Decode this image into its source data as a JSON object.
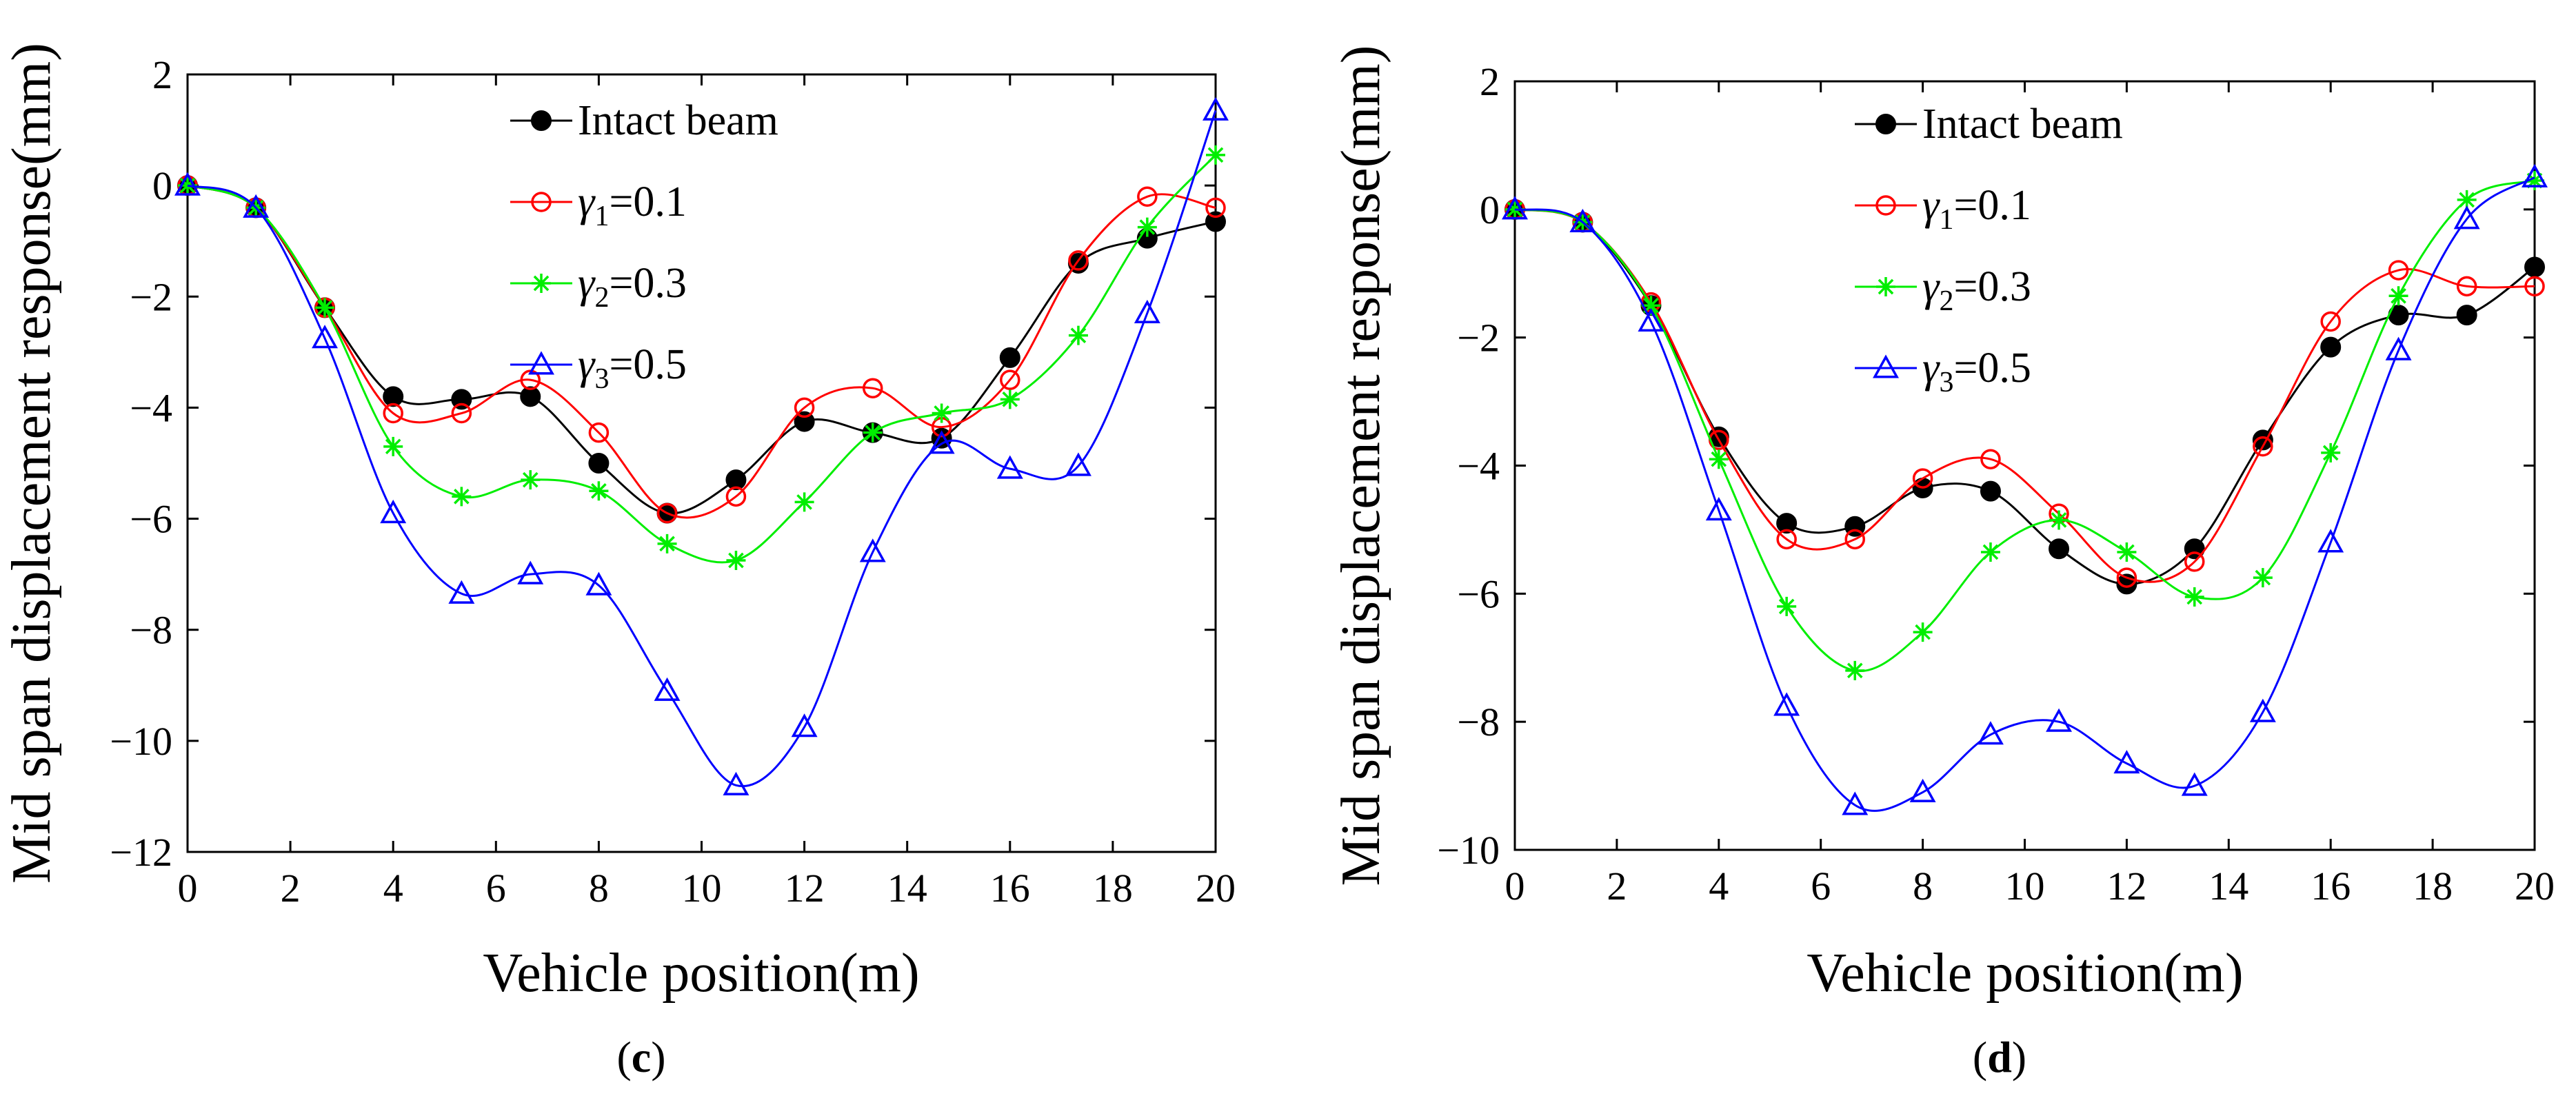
{
  "panels": [
    {
      "label_open": "(",
      "label_letter": "c",
      "label_close": ")"
    },
    {
      "label_open": "(",
      "label_letter": "d",
      "label_close": ")"
    }
  ],
  "legend": [
    {
      "prefix": "Intact beam",
      "sub": "",
      "suffix": "",
      "color": "#000000",
      "marker": "filled-circle"
    },
    {
      "prefix": "γ",
      "sub": "1",
      "suffix": "=0.1",
      "color": "#ff0000",
      "marker": "open-circle"
    },
    {
      "prefix": "γ",
      "sub": "2",
      "suffix": "=0.3",
      "color": "#00ee00",
      "marker": "asterisk"
    },
    {
      "prefix": "γ",
      "sub": "3",
      "suffix": "=0.5",
      "color": "#0000ff",
      "marker": "open-triangle"
    }
  ],
  "chart_data": [
    {
      "type": "line",
      "xlabel": "Vehicle position(m)",
      "ylabel": "Mid span displacement response(mm)",
      "xlim": [
        0,
        20
      ],
      "ylim": [
        -12,
        2
      ],
      "xticks": [
        0,
        2,
        4,
        6,
        8,
        10,
        12,
        14,
        16,
        18,
        20
      ],
      "yticks": [
        2,
        0,
        -2,
        -4,
        -6,
        -8,
        -10,
        -12
      ],
      "legend_position": "top-center",
      "grid": false,
      "x": [
        0,
        1.33,
        2.67,
        4.0,
        5.33,
        6.67,
        8.0,
        9.33,
        10.67,
        12.0,
        13.33,
        14.67,
        16.0,
        17.33,
        18.67,
        20.0
      ],
      "series": [
        {
          "name": "Intact beam",
          "values": [
            0,
            -0.4,
            -2.2,
            -3.8,
            -3.85,
            -3.8,
            -5.0,
            -5.9,
            -5.3,
            -4.25,
            -4.45,
            -4.55,
            -3.1,
            -1.4,
            -0.95,
            -0.65
          ]
        },
        {
          "name": "γ1=0.1",
          "values": [
            0,
            -0.4,
            -2.2,
            -4.1,
            -4.1,
            -3.5,
            -4.45,
            -5.9,
            -5.6,
            -4.0,
            -3.65,
            -4.35,
            -3.5,
            -1.35,
            -0.2,
            -0.4
          ]
        },
        {
          "name": "γ2=0.3",
          "values": [
            0,
            -0.4,
            -2.2,
            -4.7,
            -5.6,
            -5.3,
            -5.5,
            -6.45,
            -6.75,
            -5.7,
            -4.45,
            -4.1,
            -3.85,
            -2.7,
            -0.75,
            0.55
          ]
        },
        {
          "name": "γ3=0.5",
          "values": [
            0,
            -0.4,
            -2.75,
            -5.9,
            -7.35,
            -7.0,
            -7.2,
            -9.1,
            -10.8,
            -9.75,
            -6.6,
            -4.65,
            -5.1,
            -5.05,
            -2.3,
            1.35
          ]
        }
      ]
    },
    {
      "type": "line",
      "xlabel": "Vehicle position(m)",
      "ylabel": "Mid span displacement response(mm)",
      "xlim": [
        0,
        20
      ],
      "ylim": [
        -10,
        2
      ],
      "xticks": [
        0,
        2,
        4,
        6,
        8,
        10,
        12,
        14,
        16,
        18,
        20
      ],
      "yticks": [
        2,
        0,
        -2,
        -4,
        -6,
        -8,
        -10
      ],
      "legend_position": "top-center",
      "grid": false,
      "x": [
        0,
        1.33,
        2.67,
        4.0,
        5.33,
        6.67,
        8.0,
        9.33,
        10.67,
        12.0,
        13.33,
        14.67,
        16.0,
        17.33,
        18.67,
        20.0
      ],
      "series": [
        {
          "name": "Intact beam",
          "values": [
            0,
            -0.2,
            -1.5,
            -3.55,
            -4.9,
            -4.95,
            -4.35,
            -4.4,
            -5.3,
            -5.85,
            -5.3,
            -3.6,
            -2.15,
            -1.65,
            -1.65,
            -0.9
          ]
        },
        {
          "name": "γ1=0.1",
          "values": [
            0,
            -0.2,
            -1.45,
            -3.6,
            -5.15,
            -5.15,
            -4.2,
            -3.9,
            -4.75,
            -5.75,
            -5.5,
            -3.7,
            -1.75,
            -0.95,
            -1.2,
            -1.2
          ]
        },
        {
          "name": "γ2=0.3",
          "values": [
            0,
            -0.2,
            -1.5,
            -3.9,
            -6.2,
            -7.2,
            -6.6,
            -5.35,
            -4.85,
            -5.35,
            -6.05,
            -5.75,
            -3.8,
            -1.35,
            0.15,
            0.45
          ]
        },
        {
          "name": "γ3=0.5",
          "values": [
            0,
            -0.2,
            -1.75,
            -4.7,
            -7.75,
            -9.3,
            -9.1,
            -8.2,
            -8.0,
            -8.65,
            -9.0,
            -7.85,
            -5.2,
            -2.2,
            -0.15,
            0.5
          ]
        }
      ]
    }
  ]
}
